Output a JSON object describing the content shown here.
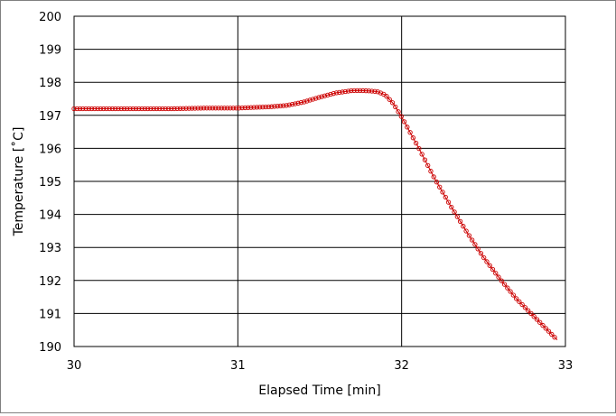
{
  "chart_data": {
    "type": "line",
    "title": "",
    "xlabel": "Elapsed Time [min]",
    "ylabel": "Temperature [˚C]",
    "xlim": [
      30,
      33
    ],
    "ylim": [
      190,
      200
    ],
    "x_ticks": [
      "30",
      "31",
      "32",
      "33"
    ],
    "y_ticks": [
      "190",
      "191",
      "192",
      "193",
      "194",
      "195",
      "196",
      "197",
      "198",
      "199",
      "200"
    ],
    "grid": true,
    "legend": "none",
    "marker": "open-circle",
    "colors": {
      "series": "#cc0000",
      "grid": "#000000",
      "frame": "#808080"
    },
    "series": [
      {
        "points": [
          [
            30.0,
            197.2
          ],
          [
            30.2,
            197.2
          ],
          [
            30.4,
            197.2
          ],
          [
            30.6,
            197.2
          ],
          [
            30.8,
            197.22
          ],
          [
            31.0,
            197.22
          ],
          [
            31.1,
            197.24
          ],
          [
            31.2,
            197.26
          ],
          [
            31.3,
            197.3
          ],
          [
            31.4,
            197.4
          ],
          [
            31.5,
            197.55
          ],
          [
            31.6,
            197.68
          ],
          [
            31.7,
            197.75
          ],
          [
            31.75,
            197.75
          ],
          [
            31.8,
            197.74
          ],
          [
            31.85,
            197.72
          ],
          [
            31.9,
            197.62
          ],
          [
            31.95,
            197.35
          ],
          [
            32.0,
            196.95
          ],
          [
            32.05,
            196.5
          ],
          [
            32.1,
            196.05
          ],
          [
            32.2,
            195.1
          ],
          [
            32.3,
            194.25
          ],
          [
            32.4,
            193.45
          ],
          [
            32.5,
            192.7
          ],
          [
            32.6,
            192.05
          ],
          [
            32.7,
            191.45
          ],
          [
            32.8,
            190.95
          ],
          [
            32.9,
            190.45
          ],
          [
            32.95,
            190.2
          ]
        ]
      }
    ]
  }
}
